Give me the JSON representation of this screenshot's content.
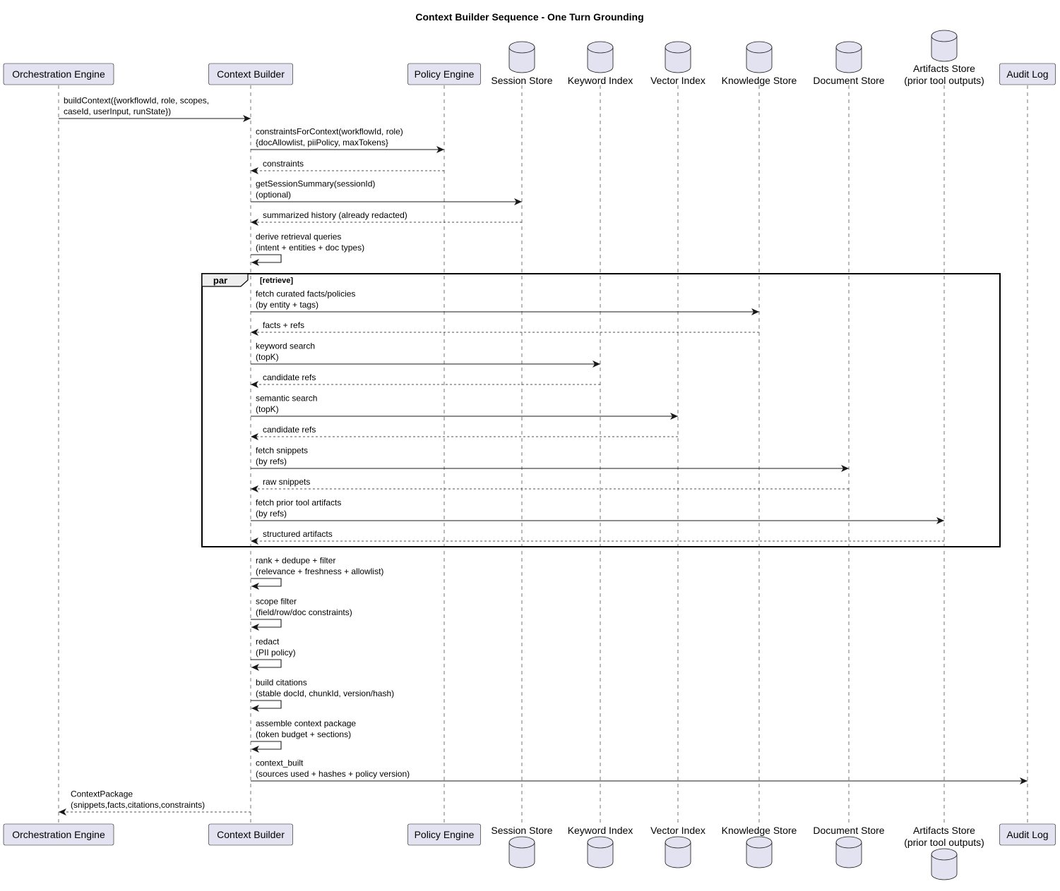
{
  "title": "Context Builder Sequence - One Turn Grounding",
  "colors": {
    "participant_fill": "#E2E2F0",
    "participant_stroke": "#181818",
    "lifeline": "#181818",
    "arrow": "#181818",
    "frame_tab_fill": "#EEEEEE"
  },
  "participants": [
    {
      "id": "orch",
      "type": "box",
      "label": "Orchestration Engine"
    },
    {
      "id": "cb",
      "type": "box",
      "label": "Context Builder"
    },
    {
      "id": "pe",
      "type": "box",
      "label": "Policy Engine"
    },
    {
      "id": "ss",
      "type": "database",
      "label": "Session Store"
    },
    {
      "id": "ki",
      "type": "database",
      "label": "Keyword Index"
    },
    {
      "id": "vi",
      "type": "database",
      "label": "Vector Index"
    },
    {
      "id": "ks",
      "type": "database",
      "label": "Knowledge Store"
    },
    {
      "id": "ds",
      "type": "database",
      "label": "Document Store"
    },
    {
      "id": "as",
      "type": "database",
      "label": "Artifacts Store",
      "label2": "(prior tool outputs)"
    },
    {
      "id": "al",
      "type": "box",
      "label": "Audit Log"
    }
  ],
  "messages": [
    {
      "from": "orch",
      "to": "cb",
      "style": "solid",
      "lines": [
        "buildContext({workflowId, role, scopes,",
        "caseId, userInput, runState})"
      ]
    },
    {
      "from": "cb",
      "to": "pe",
      "style": "solid",
      "lines": [
        "constraintsForContext(workflowId, role)",
        "{docAllowlist, piiPolicy, maxTokens}"
      ]
    },
    {
      "from": "pe",
      "to": "cb",
      "style": "dashed",
      "lines": [
        "constraints"
      ]
    },
    {
      "from": "cb",
      "to": "ss",
      "style": "solid",
      "lines": [
        "getSessionSummary(sessionId)",
        "(optional)"
      ]
    },
    {
      "from": "ss",
      "to": "cb",
      "style": "dashed",
      "lines": [
        "summarized history (already redacted)"
      ]
    },
    {
      "from": "cb",
      "to": "cb",
      "style": "self",
      "lines": [
        "derive retrieval queries",
        "(intent + entities + doc types)"
      ]
    },
    {
      "from": "cb",
      "to": "ks",
      "style": "solid",
      "lines": [
        "fetch curated facts/policies",
        "(by entity + tags)"
      ]
    },
    {
      "from": "ks",
      "to": "cb",
      "style": "dashed",
      "lines": [
        "facts + refs"
      ]
    },
    {
      "from": "cb",
      "to": "ki",
      "style": "solid",
      "lines": [
        "keyword search",
        "(topK)"
      ]
    },
    {
      "from": "ki",
      "to": "cb",
      "style": "dashed",
      "lines": [
        "candidate refs"
      ]
    },
    {
      "from": "cb",
      "to": "vi",
      "style": "solid",
      "lines": [
        "semantic search",
        "(topK)"
      ]
    },
    {
      "from": "vi",
      "to": "cb",
      "style": "dashed",
      "lines": [
        "candidate refs"
      ]
    },
    {
      "from": "cb",
      "to": "ds",
      "style": "solid",
      "lines": [
        "fetch snippets",
        "(by refs)"
      ]
    },
    {
      "from": "ds",
      "to": "cb",
      "style": "dashed",
      "lines": [
        "raw snippets"
      ]
    },
    {
      "from": "cb",
      "to": "as",
      "style": "solid",
      "lines": [
        "fetch prior tool artifacts",
        "(by refs)"
      ]
    },
    {
      "from": "as",
      "to": "cb",
      "style": "dashed",
      "lines": [
        "structured artifacts"
      ]
    },
    {
      "from": "cb",
      "to": "cb",
      "style": "self",
      "lines": [
        "rank + dedupe + filter",
        "(relevance + freshness + allowlist)"
      ]
    },
    {
      "from": "cb",
      "to": "cb",
      "style": "self",
      "lines": [
        "scope filter",
        "(field/row/doc constraints)"
      ]
    },
    {
      "from": "cb",
      "to": "cb",
      "style": "self",
      "lines": [
        "redact",
        "(PII policy)"
      ]
    },
    {
      "from": "cb",
      "to": "cb",
      "style": "self",
      "lines": [
        "build citations",
        "(stable docId, chunkId, version/hash)"
      ]
    },
    {
      "from": "cb",
      "to": "cb",
      "style": "self",
      "lines": [
        "assemble context package",
        "(token budget + sections)"
      ]
    },
    {
      "from": "cb",
      "to": "al",
      "style": "solid",
      "lines": [
        "context_built",
        "(sources used + hashes + policy version)"
      ]
    },
    {
      "from": "cb",
      "to": "orch",
      "style": "dashed",
      "lines": [
        "ContextPackage",
        "(snippets,facts,citations,constraints)"
      ]
    }
  ],
  "fragment": {
    "keyword": "par",
    "condition": "[retrieve]",
    "first_message": 6,
    "last_message": 15
  }
}
